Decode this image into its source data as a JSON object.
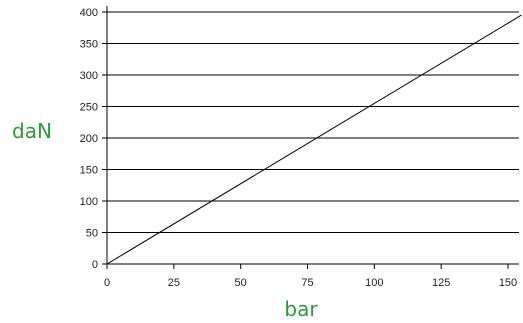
{
  "chart_data": {
    "type": "line",
    "xlabel": "bar",
    "ylabel": "daN",
    "xlim": [
      0,
      150
    ],
    "ylim": [
      0,
      400
    ],
    "x_ticks": [
      0,
      25,
      50,
      75,
      100,
      125,
      150
    ],
    "y_ticks": [
      0,
      50,
      100,
      150,
      200,
      250,
      300,
      350,
      400
    ],
    "grid": "horizontal",
    "series": [
      {
        "x": [
          0,
          155
        ],
        "y": [
          0,
          395
        ],
        "color": "#000000"
      }
    ],
    "label_color": "#2e9a3c",
    "line_color": "#000000"
  }
}
